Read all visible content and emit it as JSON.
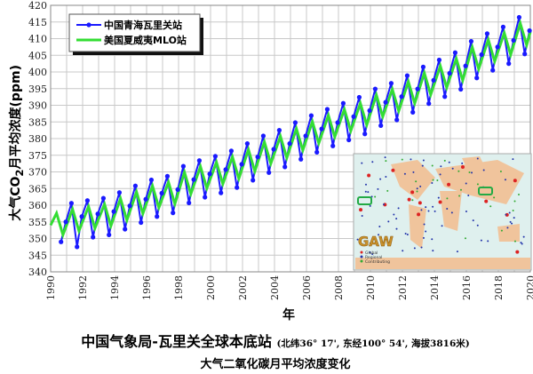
{
  "chart_data": {
    "type": "line",
    "title": "中国气象局-瓦里关全球本底站",
    "title_note": "(北纬36° 17', 东经100° 54', 海拔3816米)",
    "subtitle": "大气二氧化碳月平均浓度变化",
    "xlabel": "年",
    "ylabel_prefix": "大气CO",
    "ylabel_sub": "2",
    "ylabel_suffix": "月平均浓度(ppm)",
    "xlim": [
      1990,
      2020
    ],
    "ylim": [
      340,
      420
    ],
    "xticks": [
      "1990",
      "1992",
      "1994",
      "1996",
      "1998",
      "2000",
      "2002",
      "2004",
      "2006",
      "2008",
      "2010",
      "2012",
      "2014",
      "2016",
      "2018",
      "2020"
    ],
    "yticks": [
      "340",
      "345",
      "350",
      "355",
      "360",
      "365",
      "370",
      "375",
      "380",
      "385",
      "390",
      "395",
      "400",
      "405",
      "410",
      "415",
      "420"
    ],
    "grid": true,
    "legend_position": "top-left",
    "series": [
      {
        "name": "中国青海瓦里关站",
        "color": "#1a1aff",
        "marker": "circle",
        "x": [
          1990.65,
          1990.95,
          1991.3,
          1991.65,
          1991.95,
          1992.3,
          1992.65,
          1992.95,
          1993.3,
          1993.65,
          1993.95,
          1994.3,
          1994.65,
          1994.95,
          1995.3,
          1995.65,
          1995.95,
          1996.3,
          1996.65,
          1996.95,
          1997.3,
          1997.65,
          1997.95,
          1998.3,
          1998.65,
          1998.95,
          1999.3,
          1999.65,
          1999.95,
          2000.3,
          2000.65,
          2000.95,
          2001.3,
          2001.65,
          2001.95,
          2002.3,
          2002.65,
          2002.95,
          2003.3,
          2003.65,
          2003.95,
          2004.3,
          2004.65,
          2004.95,
          2005.3,
          2005.65,
          2005.95,
          2006.3,
          2006.65,
          2006.95,
          2007.3,
          2007.65,
          2007.95,
          2008.3,
          2008.65,
          2008.95,
          2009.3,
          2009.65,
          2009.95,
          2010.3,
          2010.65,
          2010.95,
          2011.3,
          2011.65,
          2011.95,
          2012.3,
          2012.65,
          2012.95,
          2013.3,
          2013.65,
          2013.95,
          2014.3,
          2014.65,
          2014.95,
          2015.3,
          2015.65,
          2015.95,
          2016.3,
          2016.65,
          2016.95,
          2017.3,
          2017.65,
          2017.95,
          2018.3,
          2018.65,
          2018.95,
          2019.3,
          2019.65,
          2019.95
        ],
        "y": [
          349,
          355,
          360.6,
          347.5,
          356.6,
          361.4,
          350.4,
          357.4,
          362.1,
          351.1,
          358.1,
          363.8,
          352.8,
          359.8,
          365.8,
          354.8,
          361.8,
          367.6,
          356.6,
          363.6,
          368.7,
          357.7,
          364.7,
          371.7,
          360.7,
          367.7,
          373.4,
          362.4,
          369.4,
          374.7,
          363.7,
          370.7,
          376.3,
          365.3,
          372.3,
          378.5,
          367.5,
          374.5,
          380.8,
          369.8,
          376.8,
          382.5,
          371.5,
          378.5,
          384.8,
          373.8,
          380.8,
          386.9,
          375.9,
          382.9,
          388.8,
          377.8,
          384.8,
          390.6,
          379.6,
          386.6,
          392.4,
          381.4,
          388.4,
          394.9,
          383.9,
          390.9,
          396.6,
          385.6,
          392.6,
          398.9,
          387.9,
          394.9,
          401.5,
          390.5,
          397.5,
          403.6,
          392.6,
          399.6,
          405.8,
          394.8,
          401.8,
          409.2,
          398.2,
          405.2,
          411.5,
          400.5,
          407.5,
          413.5,
          402.5,
          409.5,
          416.4,
          405.4,
          412.4
        ]
      },
      {
        "name": "美国夏威夷MLO站",
        "color": "#33dd33",
        "x": [
          1990.0,
          1990.37,
          1990.77,
          1991.37,
          1991.77,
          1992.37,
          1992.77,
          1993.37,
          1993.77,
          1994.37,
          1994.77,
          1995.37,
          1995.77,
          1996.37,
          1996.77,
          1997.37,
          1997.77,
          1998.37,
          1998.77,
          1999.37,
          1999.77,
          2000.37,
          2000.77,
          2001.37,
          2001.77,
          2002.37,
          2002.77,
          2003.37,
          2003.77,
          2004.37,
          2004.77,
          2005.37,
          2005.77,
          2006.37,
          2006.77,
          2007.37,
          2007.77,
          2008.37,
          2008.77,
          2009.37,
          2009.77,
          2010.37,
          2010.77,
          2011.37,
          2011.77,
          2012.37,
          2012.77,
          2013.37,
          2013.77,
          2014.37,
          2014.77,
          2015.37,
          2015.77,
          2016.37,
          2016.77,
          2017.37,
          2017.77,
          2018.37,
          2018.77,
          2019.37,
          2019.77,
          2020.0
        ],
        "y": [
          354.0,
          357.6,
          351.1,
          358.8,
          352.3,
          359.6,
          353.1,
          360.3,
          353.8,
          362.0,
          355.5,
          364.0,
          357.5,
          365.8,
          359.3,
          366.9,
          360.4,
          369.9,
          363.4,
          371.6,
          365.1,
          372.9,
          366.4,
          374.5,
          368.0,
          376.7,
          370.2,
          379.0,
          372.5,
          380.7,
          374.2,
          383.0,
          376.5,
          385.1,
          378.6,
          387.0,
          380.5,
          388.8,
          382.3,
          390.6,
          384.1,
          393.1,
          386.6,
          394.8,
          388.3,
          397.1,
          390.6,
          399.7,
          393.2,
          401.8,
          395.3,
          404.0,
          397.5,
          407.4,
          400.9,
          409.7,
          403.2,
          411.7,
          405.2,
          414.6,
          408.1,
          412.0
        ]
      }
    ],
    "inset_map": {
      "logo": "GAW",
      "legend": [
        "Global",
        "Regional",
        "Contributing"
      ],
      "legend_colors": [
        "#dd2222",
        "#2233aa",
        "#33aa33"
      ]
    }
  }
}
